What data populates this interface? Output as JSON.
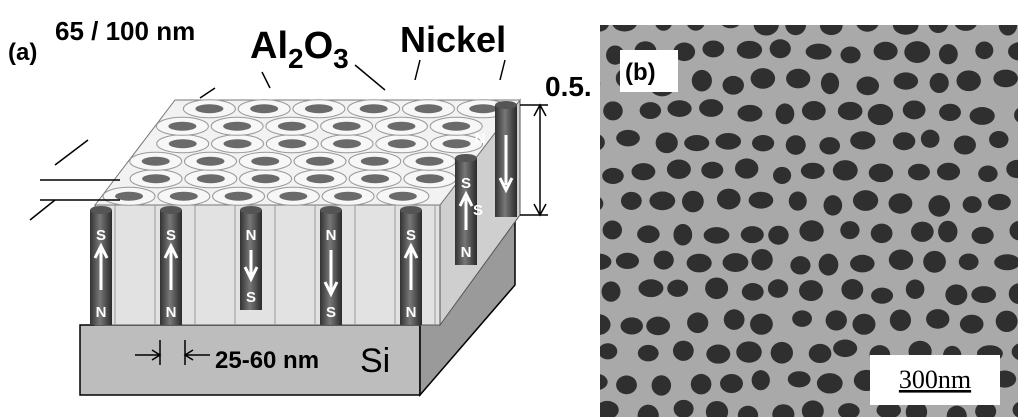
{
  "panel_a": {
    "label": "(a)",
    "pore_size": "65 / 100 nm",
    "alumina": [
      "Al",
      "2",
      "O",
      "3"
    ],
    "nickel": "Nickel",
    "height": "0.5.",
    "diameter": "25-60 nm",
    "substrate": "Si",
    "wires": [
      {
        "top": "S",
        "bottom": "N"
      },
      {
        "top": "S",
        "bottom": "N"
      },
      {
        "top": "N",
        "bottom": "S"
      },
      {
        "top": "N",
        "bottom": "S"
      },
      {
        "top": "S",
        "bottom": "N"
      },
      {
        "top": "S",
        "bottom": "N"
      }
    ]
  },
  "panel_b": {
    "label": "(b)",
    "scale_bar": "300nm"
  }
}
